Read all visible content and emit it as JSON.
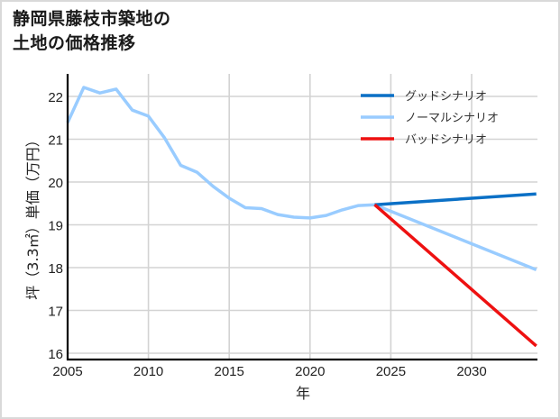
{
  "chart_data": {
    "type": "line",
    "title": "静岡県藤枝市築地の土地の価格推移",
    "title_lines": [
      "静岡県藤枝市築地の",
      "土地の価格推移"
    ],
    "xlabel": "年",
    "ylabel": "坪（3.3㎡）単価（万円）",
    "xlim": [
      2005,
      2034
    ],
    "ylim": [
      15.85,
      22.5
    ],
    "xticks": [
      2005,
      2010,
      2015,
      2020,
      2025,
      2030
    ],
    "yticks": [
      16,
      17,
      18,
      19,
      20,
      21,
      22
    ],
    "grid": true,
    "legend_position": "upper right",
    "series": [
      {
        "name": "グッドシナリオ",
        "color": "#0b70c6",
        "x": [
          2024,
          2034
        ],
        "values": [
          19.47,
          19.72
        ]
      },
      {
        "name": "ノーマルシナリオ",
        "color": "#99ccff",
        "x": [
          2005,
          2006,
          2007,
          2008,
          2009,
          2010,
          2011,
          2012,
          2013,
          2014,
          2015,
          2016,
          2017,
          2018,
          2019,
          2020,
          2021,
          2022,
          2023,
          2024,
          2034
        ],
        "values": [
          21.39,
          22.21,
          22.08,
          22.17,
          21.68,
          21.54,
          21.03,
          20.39,
          20.23,
          19.9,
          19.62,
          19.4,
          19.38,
          19.24,
          19.18,
          19.16,
          19.22,
          19.35,
          19.45,
          19.47,
          17.95
        ]
      },
      {
        "name": "バッドシナリオ",
        "color": "#ee1111",
        "x": [
          2024,
          2034
        ],
        "values": [
          19.47,
          16.17
        ]
      }
    ]
  }
}
